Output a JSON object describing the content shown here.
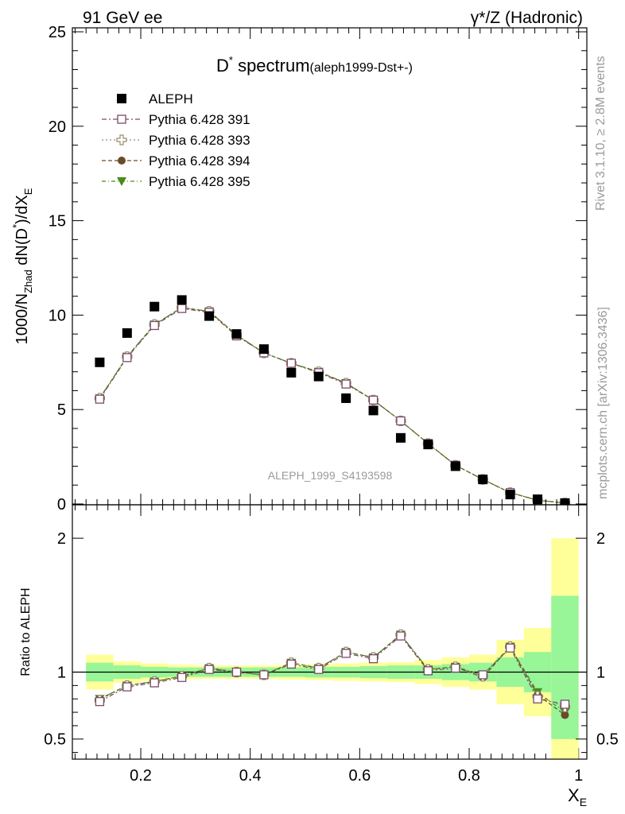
{
  "header": {
    "left": "91 GeV ee",
    "right": "γ*/Z (Hadronic)"
  },
  "side_labels": {
    "rivet": "Rivet 3.1.10, ≥ 2.8M events",
    "mcplots": "mcplots.cern.ch [arXiv:1306.3436]"
  },
  "watermark": "ALEPH_1999_S4193598",
  "colors": {
    "data": "#000000",
    "p391": "#7a4a6a",
    "p393": "#9a8a6a",
    "p394": "#6b4a2a",
    "p395": "#4a8a1a",
    "band_inner": "#98f598",
    "band_outer": "#ffff99"
  },
  "chart_data": [
    {
      "type": "scatter",
      "panel": "main",
      "title_main": "D",
      "title_sup": "*",
      "title_rest": " spectrum",
      "title_paren": "(aleph1999-Dst+-)",
      "ylabel": "1000/N_Zhad dN(D*)/dX_E",
      "ylim": [
        0,
        25
      ],
      "xlim": [
        0.075,
        1.015
      ],
      "y_ticks": [
        "0",
        "5",
        "10",
        "15",
        "20",
        "25"
      ],
      "y_tick_values": [
        0,
        5,
        10,
        15,
        20,
        25
      ],
      "x": [
        0.125,
        0.175,
        0.225,
        0.275,
        0.325,
        0.375,
        0.425,
        0.475,
        0.525,
        0.575,
        0.625,
        0.675,
        0.725,
        0.775,
        0.825,
        0.875,
        0.925,
        0.975
      ],
      "series": [
        {
          "name": "ALEPH",
          "marker": "filled-square",
          "color_key": "data",
          "values": [
            7.5,
            9.05,
            10.45,
            10.8,
            9.95,
            9.0,
            8.2,
            6.95,
            6.75,
            5.6,
            4.95,
            3.5,
            3.15,
            2.0,
            1.3,
            0.5,
            0.25,
            0.05
          ]
        },
        {
          "name": "Pythia 6.428 391",
          "marker": "open-square",
          "color_key": "p391",
          "values": [
            5.55,
            7.75,
            9.45,
            10.35,
            10.15,
            8.9,
            8.0,
            7.45,
            6.95,
            6.35,
            5.5,
            4.4,
            3.2,
            2.05,
            1.3,
            0.6,
            0.2,
            0.05
          ]
        },
        {
          "name": "Pythia 6.428 393",
          "marker": "open-plus",
          "color_key": "p393",
          "values": [
            5.6,
            7.8,
            9.5,
            10.4,
            10.2,
            8.95,
            8.0,
            7.45,
            7.0,
            6.4,
            5.5,
            4.4,
            3.2,
            2.05,
            1.3,
            0.6,
            0.2,
            0.05
          ]
        },
        {
          "name": "Pythia 6.428 394",
          "marker": "filled-circle",
          "color_key": "p394",
          "values": [
            5.6,
            7.8,
            9.5,
            10.4,
            10.2,
            8.95,
            8.0,
            7.45,
            7.0,
            6.4,
            5.5,
            4.4,
            3.2,
            2.05,
            1.3,
            0.6,
            0.2,
            0.05
          ]
        },
        {
          "name": "Pythia 6.428 395",
          "marker": "filled-triangle-down",
          "color_key": "p395",
          "values": [
            5.6,
            7.8,
            9.5,
            10.4,
            10.2,
            8.95,
            8.0,
            7.45,
            7.0,
            6.4,
            5.5,
            4.4,
            3.2,
            2.05,
            1.3,
            0.6,
            0.2,
            0.05
          ]
        }
      ]
    },
    {
      "type": "scatter",
      "panel": "ratio",
      "ylabel": "Ratio to ALEPH",
      "xlabel": "X",
      "xlabel_sub": "E",
      "ylim": [
        0.35,
        2.25
      ],
      "xlim": [
        0.075,
        1.015
      ],
      "y_ticks": [
        "0.5",
        "1",
        "2"
      ],
      "y_tick_values": [
        0.5,
        1,
        2
      ],
      "x_ticks": [
        "0.2",
        "0.4",
        "0.6",
        "0.8",
        "1"
      ],
      "x_tick_values": [
        0.2,
        0.4,
        0.6,
        0.8,
        1.0
      ],
      "reference_line": 1.0,
      "band_edges": [
        0.1,
        0.15,
        0.2,
        0.25,
        0.3,
        0.35,
        0.4,
        0.45,
        0.5,
        0.55,
        0.6,
        0.65,
        0.7,
        0.75,
        0.8,
        0.85,
        0.9,
        0.95,
        1.0
      ],
      "band_inner": [
        [
          0.93,
          1.07
        ],
        [
          0.95,
          1.05
        ],
        [
          0.96,
          1.04
        ],
        [
          0.965,
          1.035
        ],
        [
          0.965,
          1.035
        ],
        [
          0.965,
          1.035
        ],
        [
          0.965,
          1.035
        ],
        [
          0.965,
          1.035
        ],
        [
          0.96,
          1.04
        ],
        [
          0.96,
          1.04
        ],
        [
          0.955,
          1.045
        ],
        [
          0.95,
          1.05
        ],
        [
          0.95,
          1.05
        ],
        [
          0.94,
          1.06
        ],
        [
          0.93,
          1.07
        ],
        [
          0.89,
          1.11
        ],
        [
          0.85,
          1.15
        ],
        [
          0.5,
          1.57
        ]
      ],
      "band_outer": [
        [
          0.87,
          1.13
        ],
        [
          0.92,
          1.08
        ],
        [
          0.935,
          1.065
        ],
        [
          0.945,
          1.055
        ],
        [
          0.95,
          1.05
        ],
        [
          0.95,
          1.05
        ],
        [
          0.95,
          1.05
        ],
        [
          0.945,
          1.055
        ],
        [
          0.94,
          1.06
        ],
        [
          0.935,
          1.065
        ],
        [
          0.93,
          1.07
        ],
        [
          0.925,
          1.075
        ],
        [
          0.91,
          1.09
        ],
        [
          0.89,
          1.11
        ],
        [
          0.87,
          1.13
        ],
        [
          0.76,
          1.24
        ],
        [
          0.67,
          1.33
        ],
        [
          0.35,
          2.0
        ]
      ],
      "x": [
        0.125,
        0.175,
        0.225,
        0.275,
        0.325,
        0.375,
        0.425,
        0.475,
        0.525,
        0.575,
        0.625,
        0.675,
        0.725,
        0.775,
        0.825,
        0.875,
        0.925,
        0.975
      ],
      "series": [
        {
          "name": "Pythia 6.428 391",
          "marker": "open-square",
          "color_key": "p391",
          "values": [
            0.78,
            0.89,
            0.92,
            0.96,
            1.02,
            1.0,
            0.98,
            1.06,
            1.02,
            1.14,
            1.1,
            1.27,
            1.01,
            1.03,
            0.98,
            1.18,
            0.8,
            0.76
          ]
        },
        {
          "name": "Pythia 6.428 393",
          "marker": "open-plus",
          "color_key": "p393",
          "values": [
            0.79,
            0.9,
            0.93,
            0.97,
            1.03,
            1.0,
            0.98,
            1.07,
            1.03,
            1.15,
            1.11,
            1.28,
            1.02,
            1.04,
            0.97,
            1.19,
            0.82,
            0.74
          ]
        },
        {
          "name": "Pythia 6.428 394",
          "marker": "filled-circle",
          "color_key": "p394",
          "values": [
            0.8,
            0.9,
            0.93,
            0.97,
            1.03,
            1.0,
            0.98,
            1.07,
            1.03,
            1.15,
            1.11,
            1.28,
            1.02,
            1.04,
            0.96,
            1.19,
            0.83,
            0.68
          ]
        },
        {
          "name": "Pythia 6.428 395",
          "marker": "filled-triangle-down",
          "color_key": "p395",
          "values": [
            0.8,
            0.9,
            0.93,
            0.97,
            1.03,
            1.0,
            0.98,
            1.07,
            1.03,
            1.15,
            1.11,
            1.28,
            1.02,
            1.04,
            0.98,
            1.19,
            0.85,
            0.7
          ]
        }
      ]
    }
  ]
}
